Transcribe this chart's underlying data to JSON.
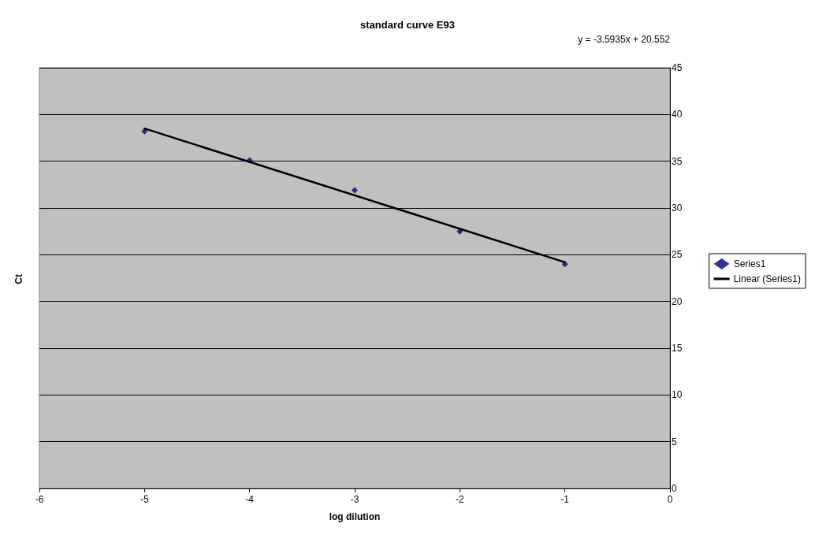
{
  "chart_data": {
    "type": "scatter",
    "title": "standard curve E93",
    "xlabel": "log dilution",
    "ylabel": "Ct",
    "annotations": [
      "y = -3.5935x + 20.552"
    ],
    "series": [
      {
        "name": "Series1",
        "color": "#000080",
        "marker": "diamond",
        "x": [
          -5,
          -4,
          -3,
          -2,
          -1
        ],
        "values": [
          38.2,
          35.1,
          31.9,
          27.5,
          24.0
        ]
      },
      {
        "name": "Linear (Series1)",
        "type": "line",
        "color": "#000000",
        "marker": "none",
        "line_style": "solid",
        "x": [
          -5,
          -1
        ],
        "values": [
          38.5,
          24.2
        ]
      }
    ],
    "xlim": [
      -6,
      0
    ],
    "xticks": [
      -6,
      -5,
      -4,
      -3,
      -2,
      -1,
      0
    ],
    "ylim": [
      0,
      45
    ],
    "yticks": [
      0,
      5,
      10,
      15,
      20,
      25,
      30,
      35,
      40,
      45
    ],
    "grid": "y",
    "legend": "right"
  }
}
